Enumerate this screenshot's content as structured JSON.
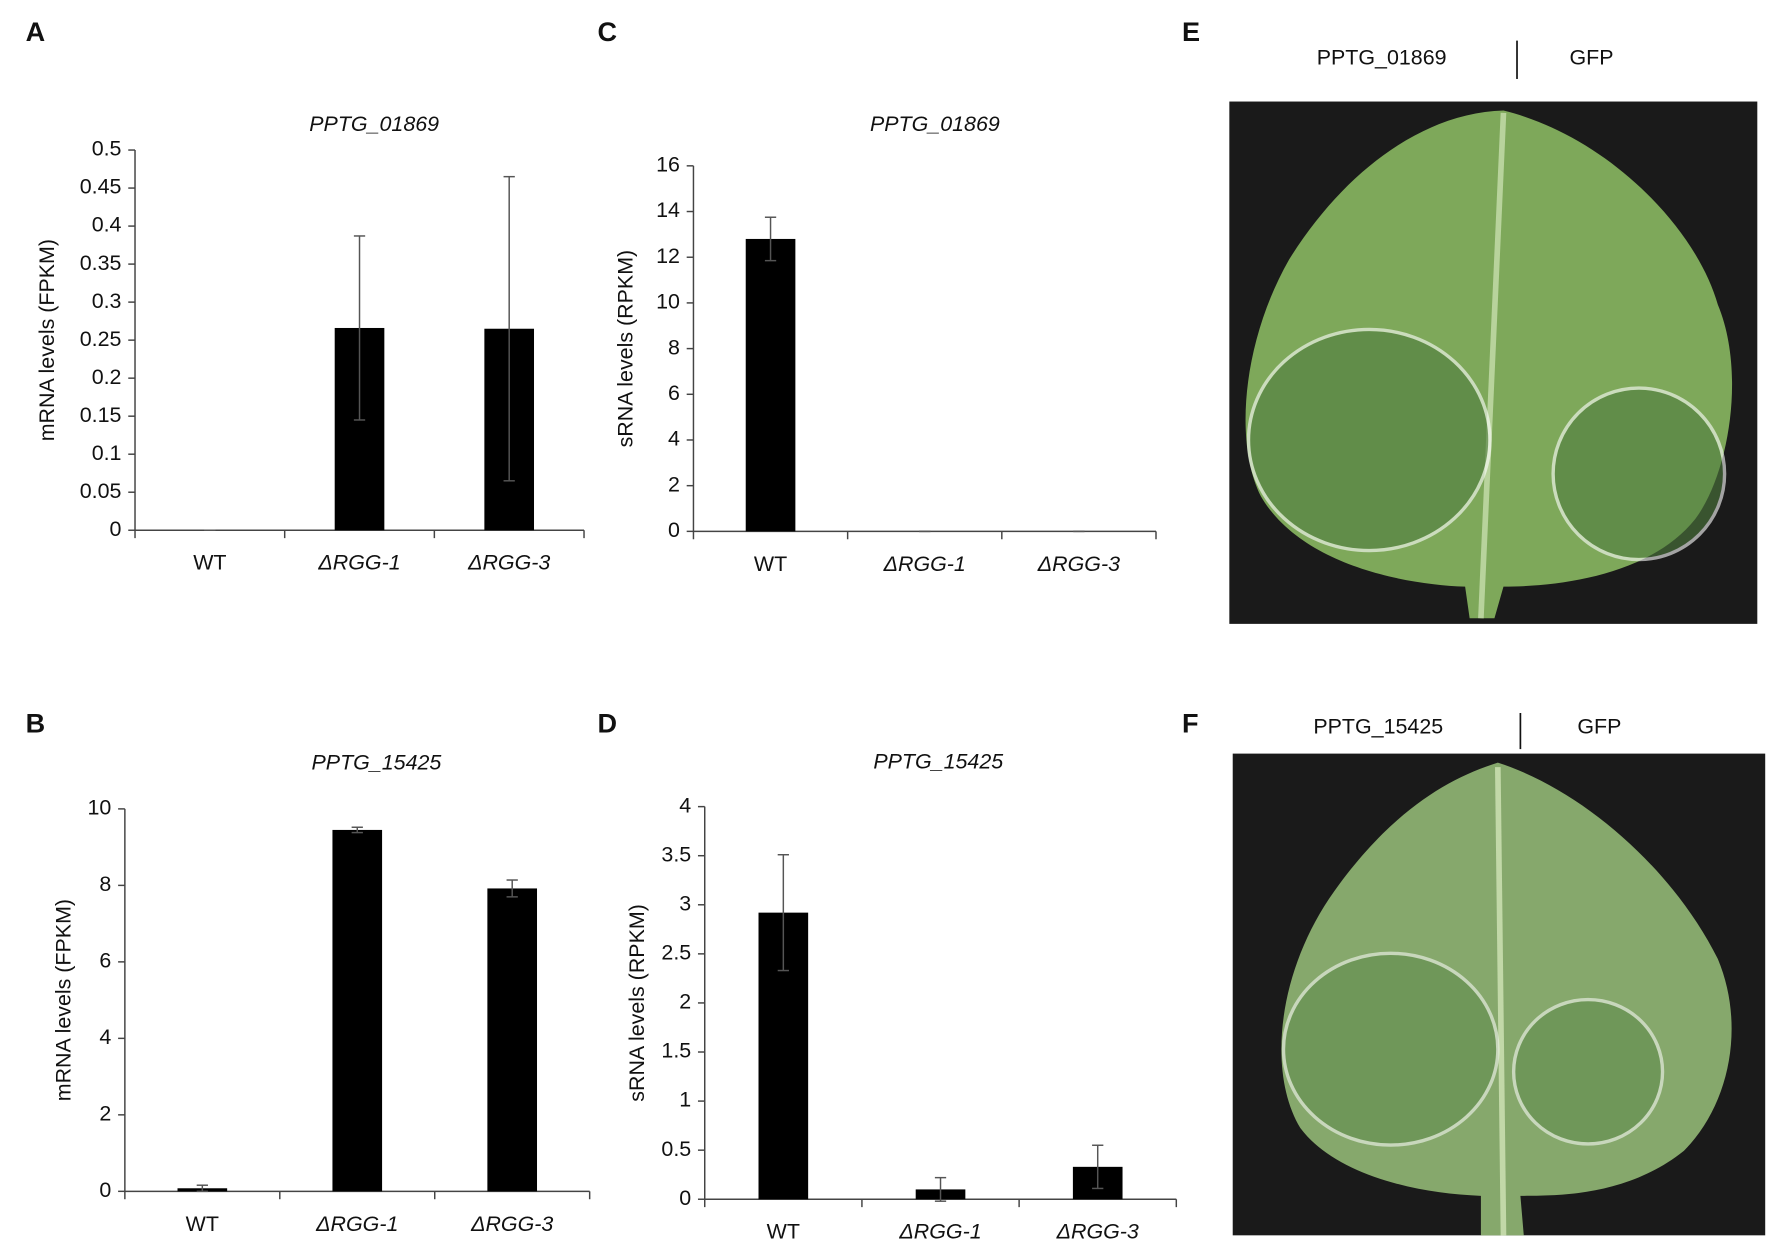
{
  "chart_data": [
    {
      "type": "bar",
      "panel": "A",
      "title": "PPTG_01869",
      "ylabel": "mRNA levels (FPKM)",
      "categories": [
        "WT",
        "ΔRGG-1",
        "ΔRGG-3"
      ],
      "values": [
        0,
        0.266,
        0.265
      ],
      "errors": [
        0,
        0.121,
        0.2
      ],
      "color": "#000000",
      "ylim": [
        0,
        0.5
      ],
      "yticks": [
        0,
        0.05,
        0.1,
        0.15,
        0.2,
        0.25,
        0.3,
        0.35,
        0.4,
        0.45,
        0.5
      ]
    },
    {
      "type": "bar",
      "panel": "B",
      "title": "PPTG_15425",
      "ylabel": "mRNA levels (FPKM)",
      "categories": [
        "WT",
        "ΔRGG-1",
        "ΔRGG-3"
      ],
      "values": [
        0.08,
        9.45,
        7.92
      ],
      "errors": [
        0.08,
        0.07,
        0.22
      ],
      "color": "#000000",
      "ylim": [
        0,
        10
      ],
      "yticks": [
        0,
        2,
        4,
        6,
        8,
        10
      ]
    },
    {
      "type": "bar",
      "panel": "C",
      "title": "PPTG_01869",
      "ylabel": "sRNA levels (RPKM)",
      "categories": [
        "WT",
        "ΔRGG-1",
        "ΔRGG-3"
      ],
      "values": [
        12.8,
        0,
        0
      ],
      "errors": [
        0.95,
        0,
        0
      ],
      "color": "#000000",
      "ylim": [
        0,
        16
      ],
      "yticks": [
        0,
        2,
        4,
        6,
        8,
        10,
        12,
        14,
        16
      ]
    },
    {
      "type": "bar",
      "panel": "D",
      "title": "PPTG_15425",
      "ylabel": "sRNA levels (RPKM)",
      "categories": [
        "WT",
        "ΔRGG-1",
        "ΔRGG-3"
      ],
      "values": [
        2.92,
        0.1,
        0.33
      ],
      "errors": [
        0.59,
        0.12,
        0.22
      ],
      "color": "#000000",
      "ylim": [
        0,
        4
      ],
      "yticks": [
        0,
        0.5,
        1,
        1.5,
        2,
        2.5,
        3,
        3.5,
        4
      ]
    }
  ],
  "photos": [
    {
      "panel": "E",
      "left_label": "PPTG_01869",
      "right_label": "GFP"
    },
    {
      "panel": "F",
      "left_label": "PPTG_15425",
      "right_label": "GFP"
    }
  ]
}
